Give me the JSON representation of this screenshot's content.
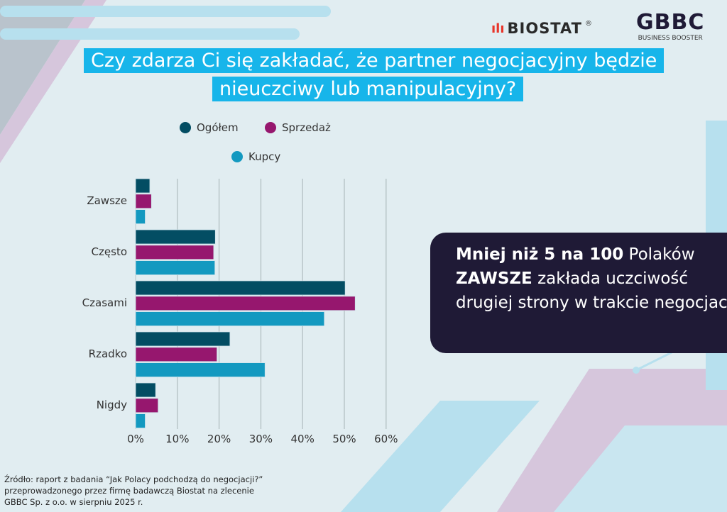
{
  "logos": {
    "biostat": "BIOSTAT",
    "biostat_mark": "®",
    "gbbc": "GBBC",
    "gbbc_sub": "BUSINESS BOOSTER"
  },
  "title_line1": "Czy zdarza Ci się zakładać, że partner negocjacyjny będzie",
  "title_line2": "nieuczciwy lub manipulacyjny?",
  "callout": {
    "bold1": "Mniej niż 5 na 100",
    "text1": " Polaków",
    "bold2": "ZAWSZE",
    "text2": " zakłada uczciwość drugiej strony w trakcie negocjacji"
  },
  "source": {
    "line1": "Źródło: raport z badania “Jak Polacy podchodzą do negocjacji?”",
    "line2": "przeprowadzonego przez firmę badawczą Biostat na zlecenie",
    "line3": "GBBC Sp. z o.o. w sierpniu 2025 r."
  },
  "chart_data": {
    "type": "bar",
    "orientation": "horizontal",
    "title": "Czy zdarza Ci się zakładać, że partner negocjacyjny będzie nieuczciwy lub manipulacyjny?",
    "categories": [
      "Zawsze",
      "Często",
      "Czasami",
      "Rzadko",
      "Nigdy"
    ],
    "series": [
      {
        "name": "Ogółem",
        "color": "#034d63",
        "values": [
          3.4,
          19.1,
          50.2,
          22.6,
          4.8
        ]
      },
      {
        "name": "Sprzedaż",
        "color": "#96176e",
        "values": [
          3.8,
          18.7,
          52.6,
          19.5,
          5.4
        ]
      },
      {
        "name": "Kupcy",
        "color": "#1399c0",
        "values": [
          2.3,
          19.0,
          45.2,
          31.0,
          2.3
        ]
      }
    ],
    "xlim": [
      0,
      60
    ],
    "xticks": [
      "0%",
      "10%",
      "20%",
      "30%",
      "40%",
      "50%",
      "60%"
    ],
    "grid": true,
    "legend": "top"
  }
}
